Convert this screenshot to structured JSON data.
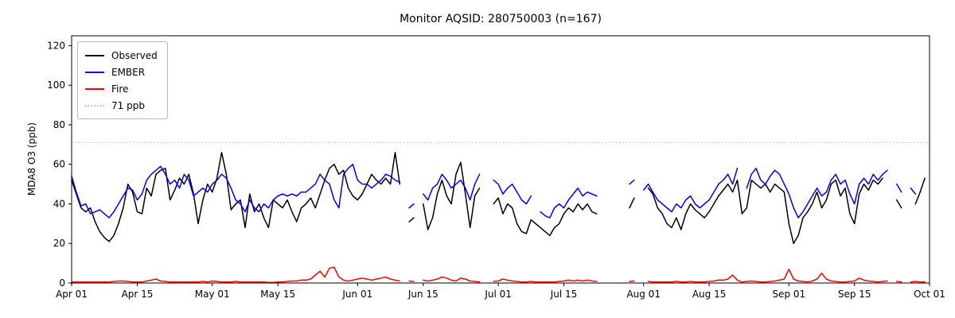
{
  "figure": {
    "title": "Monitor AQSID: 280750003 (n=167)",
    "ylabel": "MDA8 O3 (ppb)"
  },
  "chart_data": {
    "type": "line",
    "title": "Monitor AQSID: 280750003 (n=167)",
    "xlabel": "",
    "ylabel": "MDA8 O3 (ppb)",
    "ylim": [
      0,
      125
    ],
    "yticks": [
      0,
      20,
      40,
      60,
      80,
      100,
      120
    ],
    "grid": false,
    "legend_position": "upper left",
    "x_total_days": 183,
    "x_start": "Apr 01",
    "x_end": "Oct 01",
    "x_ticks": [
      {
        "day": 0,
        "label": "Apr 01"
      },
      {
        "day": 14,
        "label": "Apr 15"
      },
      {
        "day": 30,
        "label": "May 01"
      },
      {
        "day": 44,
        "label": "May 15"
      },
      {
        "day": 61,
        "label": "Jun 01"
      },
      {
        "day": 75,
        "label": "Jun 15"
      },
      {
        "day": 91,
        "label": "Jul 01"
      },
      {
        "day": 105,
        "label": "Jul 15"
      },
      {
        "day": 122,
        "label": "Aug 01"
      },
      {
        "day": 136,
        "label": "Aug 15"
      },
      {
        "day": 153,
        "label": "Sep 01"
      },
      {
        "day": 167,
        "label": "Sep 15"
      },
      {
        "day": 183,
        "label": "Oct 01"
      }
    ],
    "threshold": {
      "value": 71,
      "label": "71 ppb",
      "color": "#c9c9c9"
    },
    "series": [
      {
        "name": "Observed",
        "color": "#000000",
        "values": [
          52,
          45,
          38,
          36,
          38,
          31,
          26,
          23,
          21,
          24,
          30,
          38,
          50,
          46,
          36,
          35,
          48,
          44,
          55,
          57,
          58,
          42,
          47,
          53,
          50,
          55,
          45,
          30,
          42,
          50,
          46,
          53,
          66,
          55,
          37,
          40,
          42,
          28,
          45,
          36,
          40,
          33,
          28,
          42,
          40,
          38,
          42,
          36,
          31,
          38,
          40,
          43,
          38,
          45,
          52,
          58,
          60,
          55,
          57,
          48,
          44,
          42,
          45,
          50,
          55,
          52,
          50,
          53,
          50,
          66,
          50,
          null,
          31,
          33,
          null,
          40,
          27,
          33,
          45,
          52,
          44,
          40,
          55,
          61,
          45,
          28,
          44,
          48,
          null,
          null,
          40,
          43,
          35,
          40,
          38,
          30,
          26,
          25,
          32,
          30,
          28,
          26,
          24,
          28,
          30,
          35,
          38,
          36,
          40,
          37,
          40,
          36,
          35,
          null,
          null,
          null,
          null,
          null,
          null,
          38,
          43,
          null,
          null,
          48,
          45,
          38,
          35,
          30,
          28,
          33,
          27,
          35,
          40,
          37,
          35,
          33,
          36,
          40,
          44,
          47,
          50,
          46,
          52,
          35,
          38,
          52,
          50,
          48,
          50,
          46,
          50,
          48,
          46,
          30,
          20,
          24,
          33,
          36,
          40,
          46,
          38,
          42,
          50,
          52,
          44,
          48,
          35,
          30,
          45,
          50,
          47,
          52,
          50,
          53,
          null,
          null,
          42,
          38,
          null,
          null,
          40,
          46,
          53
        ]
      },
      {
        "name": "EMBER",
        "color": "#0000ff",
        "values": [
          54,
          46,
          39,
          40,
          35,
          36,
          37,
          35,
          33,
          36,
          40,
          44,
          48,
          47,
          42,
          45,
          52,
          55,
          57,
          59,
          55,
          50,
          52,
          48,
          55,
          52,
          44,
          46,
          48,
          46,
          50,
          52,
          55,
          53,
          48,
          42,
          40,
          36,
          42,
          38,
          36,
          40,
          38,
          42,
          44,
          45,
          44,
          45,
          44,
          46,
          46,
          48,
          50,
          55,
          52,
          50,
          42,
          38,
          55,
          58,
          60,
          52,
          50,
          50,
          48,
          50,
          52,
          55,
          54,
          52,
          51,
          null,
          38,
          40,
          null,
          45,
          42,
          48,
          50,
          55,
          52,
          48,
          50,
          52,
          48,
          42,
          50,
          55,
          null,
          null,
          52,
          50,
          45,
          48,
          50,
          46,
          42,
          40,
          44,
          null,
          36,
          34,
          33,
          38,
          40,
          38,
          42,
          45,
          48,
          44,
          46,
          45,
          44,
          null,
          null,
          null,
          null,
          null,
          null,
          50,
          52,
          null,
          47,
          50,
          46,
          42,
          40,
          38,
          36,
          40,
          38,
          42,
          44,
          40,
          38,
          40,
          42,
          46,
          50,
          52,
          55,
          50,
          58,
          null,
          48,
          55,
          58,
          52,
          50,
          54,
          57,
          55,
          50,
          45,
          38,
          33,
          36,
          40,
          44,
          48,
          44,
          46,
          52,
          55,
          50,
          52,
          45,
          40,
          50,
          53,
          50,
          55,
          52,
          55,
          57,
          null,
          50,
          46,
          null,
          48,
          45,
          null,
          47
        ]
      },
      {
        "name": "Fire",
        "color": "#ff0000",
        "values": [
          0.5,
          0.5,
          0.5,
          0.5,
          0.5,
          0.5,
          0.5,
          0.5,
          0.5,
          0.8,
          1,
          1,
          0.8,
          0.5,
          0.5,
          0.5,
          1,
          1.5,
          2,
          1,
          0.8,
          0.5,
          0.5,
          0.5,
          0.5,
          0.5,
          0.5,
          0.5,
          0.8,
          0.5,
          1,
          0.8,
          0.5,
          0.5,
          0.5,
          0.8,
          0.5,
          0.5,
          0.5,
          0.5,
          0.5,
          0.5,
          0.3,
          0.3,
          0.5,
          0.5,
          0.8,
          1,
          1,
          1.5,
          1.5,
          2,
          4,
          6,
          3,
          7.5,
          8,
          3,
          1.5,
          1,
          1.5,
          2,
          2.5,
          2,
          1.5,
          2,
          2.5,
          3,
          2,
          1.5,
          1,
          null,
          1,
          0.8,
          null,
          1.5,
          1,
          1.5,
          2,
          3,
          2.5,
          1.5,
          1,
          2.5,
          2,
          1,
          0.8,
          0.5,
          null,
          null,
          0.8,
          1,
          2,
          1.5,
          1,
          0.8,
          0.5,
          0.5,
          0.8,
          0.5,
          0.5,
          0.5,
          0.5,
          0.5,
          0.8,
          1,
          1.5,
          1,
          1.5,
          1,
          1.5,
          1,
          0.8,
          null,
          null,
          null,
          null,
          null,
          null,
          0.8,
          1,
          null,
          null,
          0.8,
          0.5,
          0.5,
          0.5,
          0.5,
          0.5,
          0.8,
          0.5,
          0.5,
          0.8,
          0.5,
          0.5,
          0.5,
          0.8,
          1,
          1.5,
          1.5,
          2,
          4,
          1.5,
          0.5,
          0.8,
          1,
          0.8,
          0.5,
          0.5,
          0.8,
          1,
          1.5,
          2,
          7,
          2,
          1,
          0.8,
          0.5,
          1,
          2,
          5,
          2,
          1,
          0.8,
          0.5,
          0.5,
          0.8,
          1,
          2.5,
          1.5,
          1,
          0.8,
          0.5,
          0.8,
          1,
          null,
          0.8,
          0.5,
          null,
          0.5,
          0.8,
          0.5,
          0.5
        ]
      }
    ]
  }
}
